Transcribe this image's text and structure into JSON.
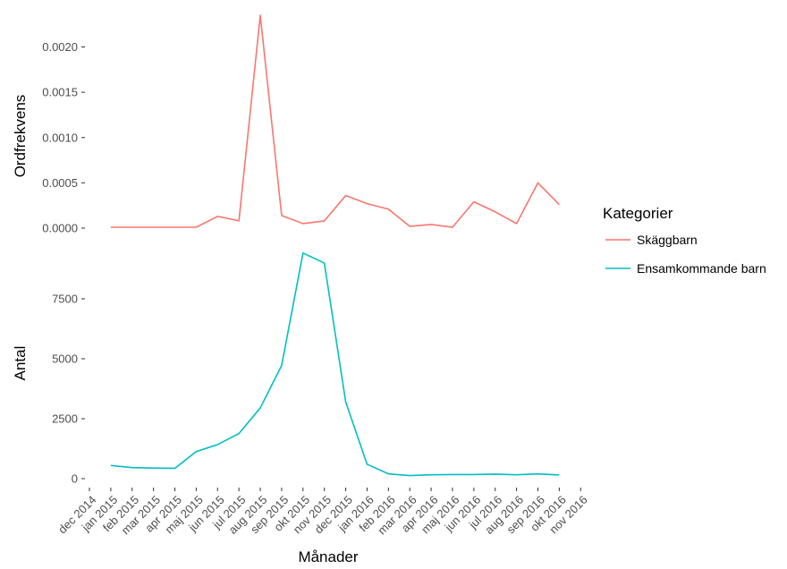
{
  "chart_data": {
    "type": "line",
    "x": [
      "jan 2015",
      "feb 2015",
      "mar 2015",
      "apr 2015",
      "maj 2015",
      "jun 2015",
      "jul 2015",
      "aug 2015",
      "sep 2015",
      "okt 2015",
      "nov 2015",
      "dec 2015",
      "jan 2016",
      "feb 2016",
      "mar 2016",
      "apr 2016",
      "maj 2016",
      "jun 2016",
      "jul 2016",
      "aug 2016",
      "sep 2016",
      "okt 2016"
    ],
    "x_ticks": [
      "dec 2014",
      "jan 2015",
      "feb 2015",
      "mar 2015",
      "apr 2015",
      "maj 2015",
      "jun 2015",
      "jul 2015",
      "aug 2015",
      "sep 2015",
      "okt 2015",
      "nov 2015",
      "dec 2015",
      "jan 2016",
      "feb 2016",
      "mar 2016",
      "apr 2016",
      "maj 2016",
      "jun 2016",
      "jul 2016",
      "aug 2016",
      "sep 2016",
      "okt 2016",
      "nov 2016"
    ],
    "xlabel": "Månader",
    "panels": [
      {
        "ylabel": "Ordfrekvens",
        "ylim": [
          0,
          0.0024
        ],
        "yticks": [
          "0.0000",
          "0.0005",
          "0.0010",
          "0.0015",
          "0.0020"
        ],
        "ytick_values": [
          0,
          0.0005,
          0.001,
          0.0015,
          0.002
        ],
        "series": [
          {
            "name": "Skäggbarn",
            "color": "#F8766D",
            "values": [
              1e-05,
              1e-05,
              1e-05,
              1e-05,
              1e-05,
              0.00013,
              8e-05,
              0.00235,
              0.00014,
              5e-05,
              8e-05,
              0.00036,
              0.00027,
              0.00021,
              2e-05,
              4e-05,
              1e-05,
              0.00029,
              0.00018,
              5e-05,
              0.0005,
              0.00026
            ]
          }
        ]
      },
      {
        "ylabel": "Antal",
        "ylim": [
          0,
          10000
        ],
        "yticks": [
          "0",
          "2500",
          "5000",
          "7500"
        ],
        "ytick_values": [
          0,
          2500,
          5000,
          7500
        ],
        "series": [
          {
            "name": "Ensamkommande barn",
            "color": "#00BFC4",
            "values": [
              550,
              460,
              440,
              430,
              1130,
              1420,
              1880,
              2950,
              4720,
              9410,
              8990,
              3200,
              600,
              200,
              130,
              160,
              170,
              170,
              190,
              160,
              200,
              150
            ]
          }
        ]
      }
    ],
    "legend": {
      "title": "Kategorier",
      "placement": "right",
      "entries": [
        {
          "label": "Skäggbarn",
          "color": "#F8766D"
        },
        {
          "label": "Ensamkommande barn",
          "color": "#00BFC4"
        }
      ]
    },
    "grid": false
  }
}
